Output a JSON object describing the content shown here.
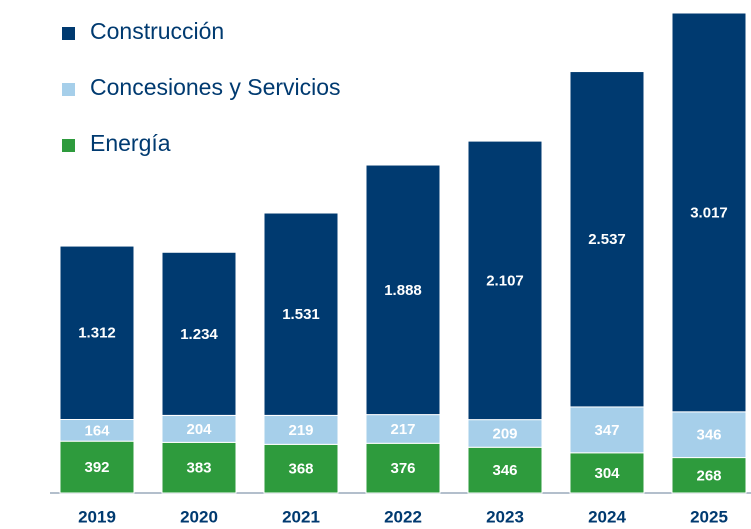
{
  "chart_data": {
    "type": "stacked_bar",
    "categories": [
      "2019",
      "2020",
      "2021",
      "2022",
      "2023",
      "2024",
      "2025"
    ],
    "series": [
      {
        "name": "Energía",
        "color": "#2e9b3d",
        "values": [
          392,
          383,
          368,
          376,
          346,
          304,
          268
        ]
      },
      {
        "name": "Concesiones y Servicios",
        "color": "#a6cfea",
        "values": [
          164,
          204,
          219,
          217,
          209,
          347,
          346
        ]
      },
      {
        "name": "Construcción",
        "color": "#003a70",
        "values": [
          1312,
          1234,
          1531,
          1888,
          2107,
          2537,
          3017
        ],
        "value_labels": [
          "1.312",
          "1.234",
          "1.531",
          "1.888",
          "2.107",
          "2.537",
          "3.017"
        ]
      }
    ]
  }
}
